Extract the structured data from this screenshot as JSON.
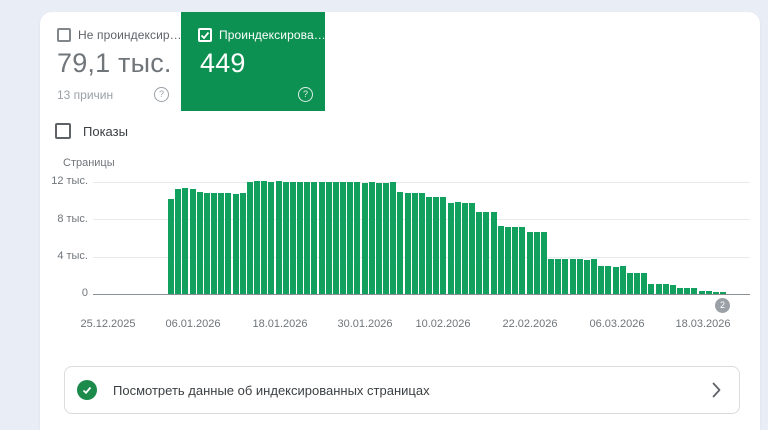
{
  "cards": {
    "not_indexed": {
      "label": "Не проиндексир…",
      "value": "79,1 тыс.",
      "subtitle": "13 причин",
      "checked": false,
      "help_icon": "?"
    },
    "indexed": {
      "label": "Проиндексирова…",
      "value": "449",
      "checked": true,
      "help_icon": "?"
    }
  },
  "impressions_toggle": {
    "label": "Показы",
    "checked": false
  },
  "chart_data": {
    "type": "bar",
    "title": "",
    "ylabel": "Страницы",
    "xlabel": "",
    "ylim": [
      0,
      12000
    ],
    "y_ticks": [
      "12 тыс.",
      "8 тыс.",
      "4 тыс.",
      "0"
    ],
    "x_ticks": [
      "25.12.2025",
      "06.01.2026",
      "18.01.2026",
      "30.01.2026",
      "10.02.2026",
      "22.02.2026",
      "06.03.2026",
      "18.03.2026"
    ],
    "interval": "daily",
    "first_bar_date": "03.01.2026",
    "last_bar_date": "21.03.2026",
    "grid": true,
    "legend": false,
    "bar_color": "#12a05e",
    "values": [
      10200,
      11300,
      11350,
      11300,
      10900,
      10850,
      10850,
      10800,
      10800,
      10750,
      10800,
      12050,
      12100,
      12100,
      12050,
      12100,
      12050,
      12000,
      12000,
      12050,
      12000,
      11950,
      12000,
      11950,
      11950,
      12000,
      11950,
      11900,
      11950,
      11900,
      11900,
      11950,
      10900,
      10850,
      10850,
      10800,
      10400,
      10400,
      10350,
      9800,
      9850,
      9800,
      9750,
      8800,
      8750,
      8800,
      7250,
      7200,
      7200,
      7150,
      6600,
      6650,
      6600,
      3750,
      3700,
      3700,
      3750,
      3700,
      3650,
      3700,
      2950,
      2950,
      2900,
      2950,
      2200,
      2250,
      2200,
      1050,
      1100,
      1050,
      1000,
      600,
      650,
      600,
      300,
      280,
      250,
      230
    ]
  },
  "chart_badge": {
    "value": "2"
  },
  "footer_link": {
    "label": "Посмотреть данные об индексированных страницах"
  },
  "colors": {
    "page_bg": "#e9edf5",
    "card_bg": "#ffffff",
    "selected_card_green": "#0d9152",
    "bar_green": "#12a05e",
    "check_circle_green": "#1b8a4a",
    "border_gray": "#dadce0",
    "text_dark": "#3c4043",
    "text_gray": "#70757a",
    "text_light": "#9aa0a6",
    "gridline": "#e8eaed",
    "axis_line": "#8a8f94",
    "badge_bg": "#9aa0a6"
  }
}
